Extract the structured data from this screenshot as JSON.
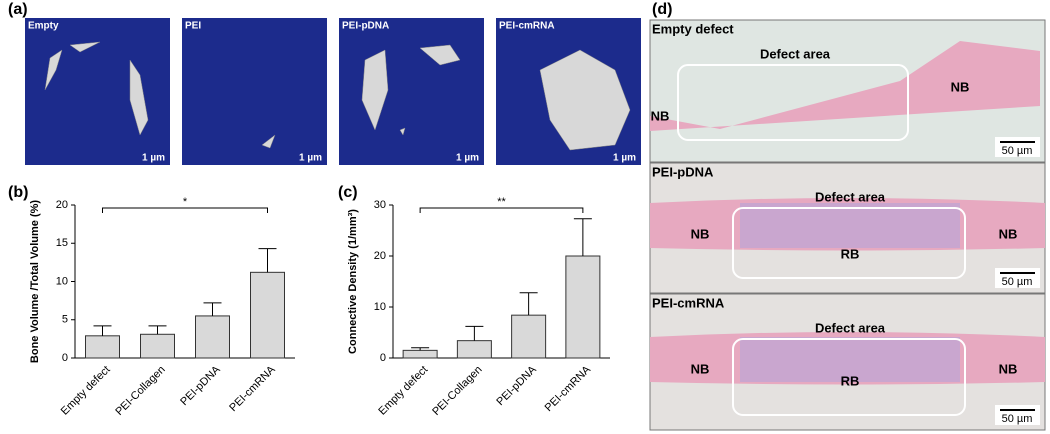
{
  "figure_labels": [
    "(a)",
    "(b)",
    "(c)",
    "(d)"
  ],
  "micro_ct": [
    {
      "label": "Empty",
      "scale": "1 µm"
    },
    {
      "label": "PEI",
      "scale": "1 µm"
    },
    {
      "label": "PEI-pDNA",
      "scale": "1 µm"
    },
    {
      "label": "PEI-cmRNA",
      "scale": "1 µm"
    }
  ],
  "histology": [
    {
      "title": "Empty defect",
      "region": "Defect area",
      "labels": [
        "NB",
        "NB"
      ],
      "scale": "50 µm"
    },
    {
      "title": "PEI-pDNA",
      "region": "Defect area",
      "labels": [
        "NB",
        "RB",
        "NB"
      ],
      "scale": "50 µm"
    },
    {
      "title": "PEI-cmRNA",
      "region": "Defect area",
      "labels": [
        "NB",
        "RB",
        "NB"
      ],
      "scale": "50 µm"
    }
  ],
  "chart_data": [
    {
      "type": "bar",
      "y_label": "Bone Volume /Total Volume (%)",
      "categories": [
        "Empty defect",
        "PEI-Collagen",
        "PEI-pDNA",
        "PEI-cmRNA"
      ],
      "values": [
        2.9,
        3.1,
        5.5,
        11.2
      ],
      "errors": [
        1.3,
        1.1,
        1.7,
        3.1
      ],
      "color": "#d9d9d9",
      "ylim": [
        0,
        20
      ],
      "yticks": [
        0,
        5,
        10,
        15,
        20
      ],
      "significance": "*"
    },
    {
      "type": "bar",
      "y_label": "Connective Density (1/mm³)",
      "categories": [
        "Empty defect",
        "PEI-Collagen",
        "PEI-pDNA",
        "PEI-cmRNA"
      ],
      "values": [
        1.5,
        3.4,
        8.4,
        20
      ],
      "errors": [
        0.5,
        2.8,
        4.4,
        7.3
      ],
      "color": "#d9d9d9",
      "ylim": [
        0,
        30
      ],
      "yticks": [
        0,
        10,
        20,
        30
      ],
      "significance": "**"
    }
  ]
}
